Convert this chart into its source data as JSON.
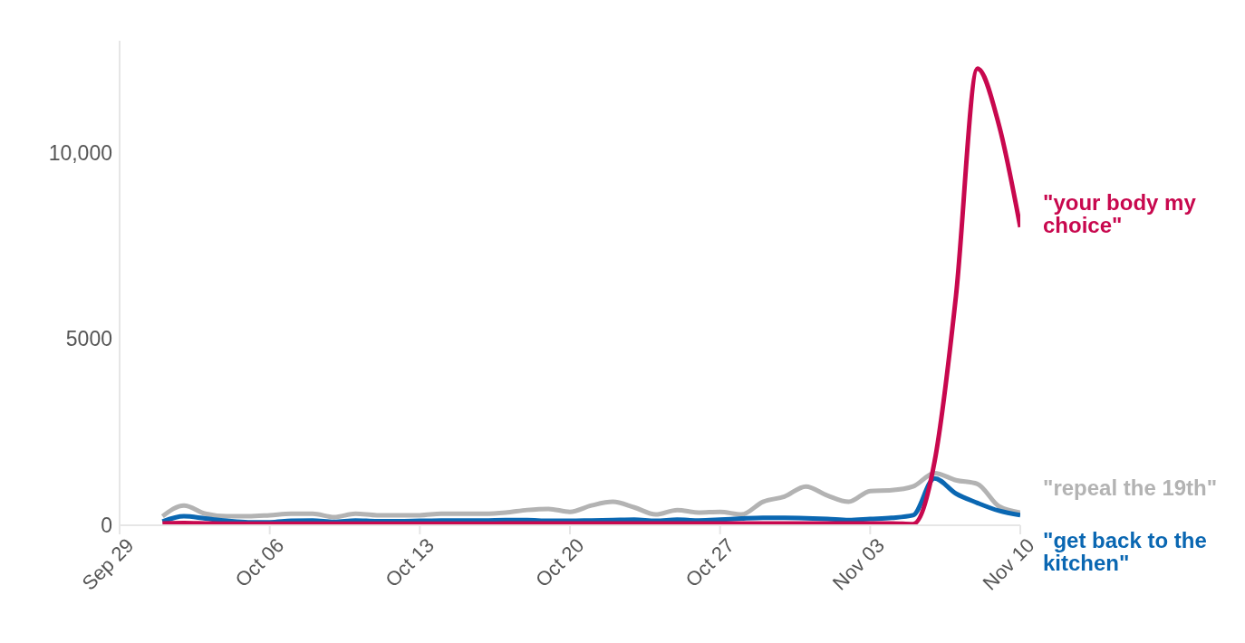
{
  "chart_data": {
    "type": "line",
    "x": [
      "--10-01",
      "--10-02",
      "--10-03",
      "--10-04",
      "--10-05",
      "--10-06",
      "--10-07",
      "--10-08",
      "--10-09",
      "--10-10",
      "--10-11",
      "--10-12",
      "--10-13",
      "--10-14",
      "--10-15",
      "--10-16",
      "--10-17",
      "--10-18",
      "--10-19",
      "--10-20",
      "--10-21",
      "--10-22",
      "--10-23",
      "--10-24",
      "--10-25",
      "--10-26",
      "--10-27",
      "--10-28",
      "--10-29",
      "--10-30",
      "--10-31",
      "--11-01",
      "--11-02",
      "--11-03",
      "--11-04",
      "--11-05",
      "--11-06",
      "--11-07",
      "--11-08",
      "--11-09",
      "--11-10"
    ],
    "series": [
      {
        "name": "\"your body my choice\"",
        "color": "#c8084e",
        "values": [
          50,
          60,
          50,
          40,
          40,
          40,
          40,
          40,
          40,
          40,
          40,
          40,
          40,
          40,
          40,
          40,
          50,
          50,
          50,
          50,
          50,
          50,
          50,
          50,
          50,
          50,
          50,
          50,
          50,
          50,
          50,
          50,
          50,
          50,
          50,
          30,
          1700,
          6150,
          12250,
          10750,
          8000
        ]
      },
      {
        "name": "\"repeal the 19th\"",
        "color": "#b3b3b3",
        "values": [
          240,
          530,
          310,
          240,
          240,
          270,
          310,
          310,
          220,
          310,
          270,
          270,
          270,
          310,
          310,
          310,
          340,
          410,
          440,
          360,
          530,
          630,
          480,
          290,
          410,
          340,
          360,
          290,
          630,
          770,
          1040,
          800,
          630,
          920,
          940,
          1040,
          1400,
          1210,
          1110,
          510,
          340
        ]
      },
      {
        "name": "\"get back to the kitchen\"",
        "color": "#0a67b2",
        "values": [
          100,
          240,
          180,
          120,
          80,
          80,
          120,
          130,
          90,
          130,
          110,
          110,
          120,
          130,
          130,
          130,
          140,
          140,
          120,
          120,
          130,
          140,
          150,
          120,
          150,
          130,
          150,
          180,
          200,
          200,
          190,
          170,
          140,
          170,
          200,
          270,
          1260,
          850,
          600,
          390,
          270
        ]
      }
    ],
    "xlim": [
      "--09-29",
      "--11-10"
    ],
    "xticks": [
      {
        "value": "--09-29",
        "label": "Sep 29"
      },
      {
        "value": "--10-06",
        "label": "Oct 06"
      },
      {
        "value": "--10-13",
        "label": "Oct 13"
      },
      {
        "value": "--10-20",
        "label": "Oct 20"
      },
      {
        "value": "--10-27",
        "label": "Oct 27"
      },
      {
        "value": "--11-03",
        "label": "Nov 03"
      },
      {
        "value": "--11-10",
        "label": "Nov 10"
      }
    ],
    "ylim": [
      0,
      13000
    ],
    "yticks": [
      0,
      5000,
      {
        "value": 10000,
        "label": "10,000"
      }
    ],
    "grid": false,
    "legend": false,
    "marker": "none",
    "line_style": "solid"
  }
}
